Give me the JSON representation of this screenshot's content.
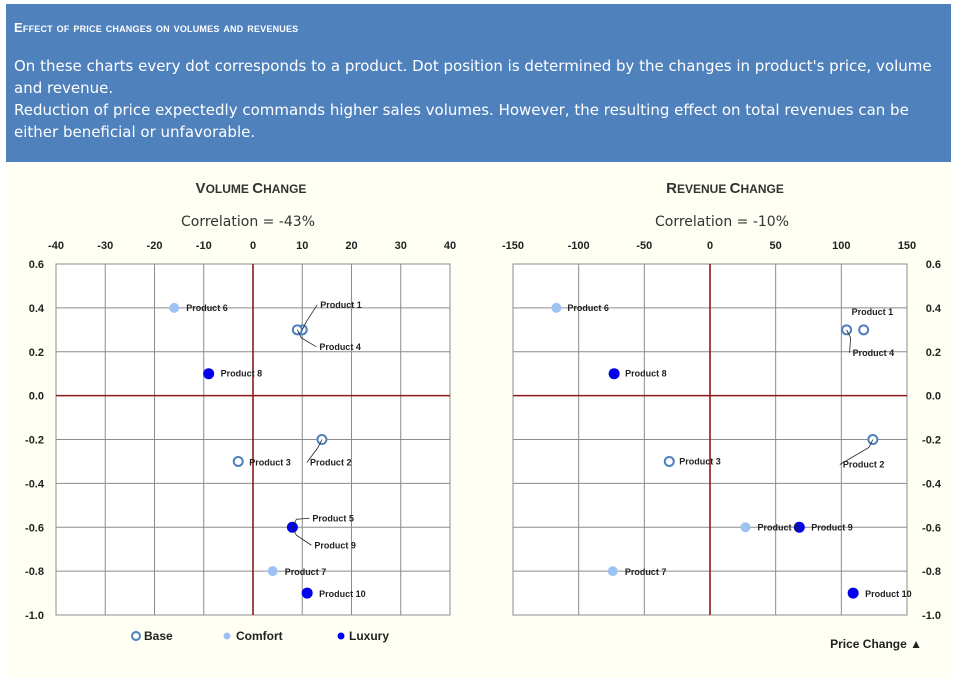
{
  "header": {
    "title": "Effect of price changes on volumes and revenues",
    "line1": "On these charts every dot corresponds to a product. Dot position is determined by the changes in product's price, volume and revenue.",
    "line2": "Reduction of price expectedly commands higher sales volumes. However, the resulting effect on total revenues  can be either beneficial or unfavorable."
  },
  "colors": {
    "base": "#4f81bd",
    "comfort": "#9dc3f5",
    "luxury": "#0000ee",
    "axis": "#8b1a1a",
    "grid": "#8c8c8c"
  },
  "legend": {
    "base": "Base",
    "comfort": "Comfort",
    "luxury": "Luxury"
  },
  "axis_note": "Price Change ▲",
  "chart_data": [
    {
      "type": "scatter",
      "title": "Volume change",
      "subtitle": "Correlation = -43%",
      "xlim": [
        -40,
        40
      ],
      "ylim": [
        -1.0,
        0.6
      ],
      "xticks": [
        -40,
        -30,
        -20,
        -10,
        0,
        10,
        20,
        30,
        40
      ],
      "yticks": [
        0.6,
        0.4,
        0.2,
        0.0,
        -0.2,
        -0.4,
        -0.6,
        -0.8,
        -1.0
      ],
      "points": [
        {
          "name": "Product 1",
          "x": 10,
          "y": 0.3,
          "class": "base"
        },
        {
          "name": "Product 2",
          "x": 14,
          "y": -0.2,
          "class": "base"
        },
        {
          "name": "Product 3",
          "x": -3,
          "y": -0.3,
          "class": "base"
        },
        {
          "name": "Product 4",
          "x": 9,
          "y": 0.3,
          "class": "base"
        },
        {
          "name": "Product 5",
          "x": 8,
          "y": -0.6,
          "class": "comfort"
        },
        {
          "name": "Product 6",
          "x": -16,
          "y": 0.4,
          "class": "comfort"
        },
        {
          "name": "Product 7",
          "x": 4,
          "y": -0.8,
          "class": "comfort"
        },
        {
          "name": "Product 8",
          "x": -9,
          "y": 0.1,
          "class": "luxury"
        },
        {
          "name": "Product 9",
          "x": 8,
          "y": -0.6,
          "class": "luxury"
        },
        {
          "name": "Product 10",
          "x": 11,
          "y": -0.9,
          "class": "luxury"
        }
      ]
    },
    {
      "type": "scatter",
      "title": "Revenue change",
      "subtitle": "Correlation = -10%",
      "xlim": [
        -150,
        150
      ],
      "ylim": [
        -1.0,
        0.6
      ],
      "xticks": [
        -150,
        -100,
        -50,
        0,
        50,
        100,
        150
      ],
      "yticks": [
        0.6,
        0.4,
        0.2,
        0.0,
        -0.2,
        -0.4,
        -0.6,
        -0.8,
        -1.0
      ],
      "points": [
        {
          "name": "Product 1",
          "x": 117,
          "y": 0.3,
          "class": "base"
        },
        {
          "name": "Product 2",
          "x": 124,
          "y": -0.2,
          "class": "base"
        },
        {
          "name": "Product 3",
          "x": -31,
          "y": -0.3,
          "class": "base"
        },
        {
          "name": "Product 4",
          "x": 104,
          "y": 0.3,
          "class": "base"
        },
        {
          "name": "Product 5",
          "x": 27,
          "y": -0.6,
          "class": "comfort"
        },
        {
          "name": "Product 6",
          "x": -117,
          "y": 0.4,
          "class": "comfort"
        },
        {
          "name": "Product 7",
          "x": -74,
          "y": -0.8,
          "class": "comfort"
        },
        {
          "name": "Product 8",
          "x": -73,
          "y": 0.1,
          "class": "luxury"
        },
        {
          "name": "Product 9",
          "x": 68,
          "y": -0.6,
          "class": "luxury"
        },
        {
          "name": "Product 10",
          "x": 109,
          "y": -0.9,
          "class": "luxury"
        }
      ]
    }
  ]
}
